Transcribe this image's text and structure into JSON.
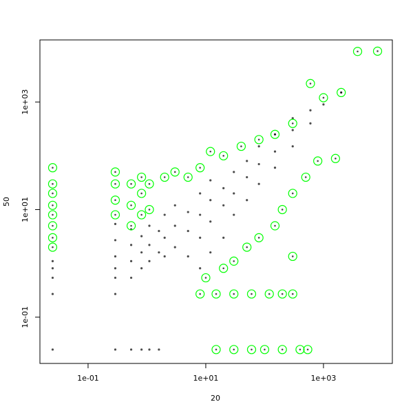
{
  "chart_data": {
    "type": "scatter",
    "xlabel": "20",
    "ylabel": "50",
    "log_x": true,
    "log_y": true,
    "xlim": [
      0.0152,
      14800
    ],
    "ylim": [
      0.0138,
      14250
    ],
    "xticks": [
      {
        "value": 0.1,
        "label": "1e-01"
      },
      {
        "value": 10,
        "label": "1e+01"
      },
      {
        "value": 1000,
        "label": "1e+03"
      }
    ],
    "yticks": [
      {
        "value": 0.1,
        "label": "1e-01"
      },
      {
        "value": 10,
        "label": "1e+01"
      },
      {
        "value": 1000,
        "label": "1e+03"
      }
    ],
    "series": [
      {
        "color": "#000000",
        "marker": "dot",
        "x": [
          0.025,
          0.025,
          0.025,
          0.025,
          0.025,
          0.29,
          0.29,
          0.29,
          0.29,
          0.29,
          0.29,
          0.29,
          0.54,
          0.54,
          0.54,
          0.54,
          0.54,
          0.81,
          0.81,
          0.81,
          0.81,
          1.1,
          1.1,
          1.1,
          1.1,
          1.6,
          1.6,
          1.6,
          2,
          2,
          2,
          3,
          3,
          3,
          5,
          5,
          5,
          8,
          8,
          8,
          8,
          12,
          12,
          12,
          12,
          20,
          20,
          20,
          30,
          30,
          30,
          50,
          50,
          50,
          80,
          80,
          80,
          150,
          150,
          150,
          300,
          300,
          300,
          600,
          600,
          1000,
          2000
        ],
        "values": [
          0.025,
          0.27,
          0.54,
          0.81,
          1.1,
          0.025,
          0.27,
          0.54,
          0.81,
          1.35,
          2.7,
          5.4,
          0.025,
          0.54,
          1.1,
          2.2,
          4.3,
          0.025,
          0.81,
          1.6,
          3.2,
          0.025,
          1.1,
          2.2,
          5,
          0.025,
          1.6,
          4,
          1.35,
          3,
          8,
          2,
          5,
          12,
          1.35,
          4,
          9,
          0.81,
          3,
          8,
          20,
          1.6,
          6,
          15,
          35,
          3,
          12,
          25,
          8,
          20,
          50,
          15,
          40,
          80,
          30,
          70,
          150,
          60,
          120,
          250,
          150,
          300,
          500,
          400,
          700,
          900,
          1500
        ]
      },
      {
        "color": "#00ff00",
        "marker": "open-circle",
        "x": [
          0.025,
          0.025,
          0.025,
          0.025,
          0.025,
          0.025,
          0.025,
          0.025,
          0.29,
          0.29,
          0.29,
          0.29,
          0.54,
          0.54,
          0.54,
          0.81,
          0.81,
          0.81,
          1.1,
          1.1,
          2,
          3,
          5,
          8,
          12,
          20,
          40,
          80,
          150,
          300,
          600,
          1000,
          2000,
          3800,
          8300,
          15,
          30,
          60,
          100,
          200,
          400,
          540,
          8,
          15,
          30,
          60,
          120,
          200,
          300,
          10,
          20,
          30,
          50,
          80,
          150,
          200,
          300,
          500,
          800,
          1600,
          300
        ],
        "values": [
          2,
          3,
          5,
          8,
          12,
          20,
          30,
          60,
          8,
          15,
          30,
          50,
          5,
          12,
          30,
          8,
          20,
          40,
          10,
          30,
          40,
          50,
          40,
          60,
          120,
          100,
          150,
          200,
          250,
          400,
          2200,
          1200,
          1500,
          8700,
          8800,
          0.025,
          0.025,
          0.025,
          0.025,
          0.025,
          0.025,
          0.025,
          0.27,
          0.27,
          0.27,
          0.27,
          0.27,
          0.27,
          0.27,
          0.54,
          0.81,
          1.1,
          2,
          3,
          5,
          10,
          20,
          40,
          80,
          89,
          1.35
        ]
      }
    ]
  }
}
